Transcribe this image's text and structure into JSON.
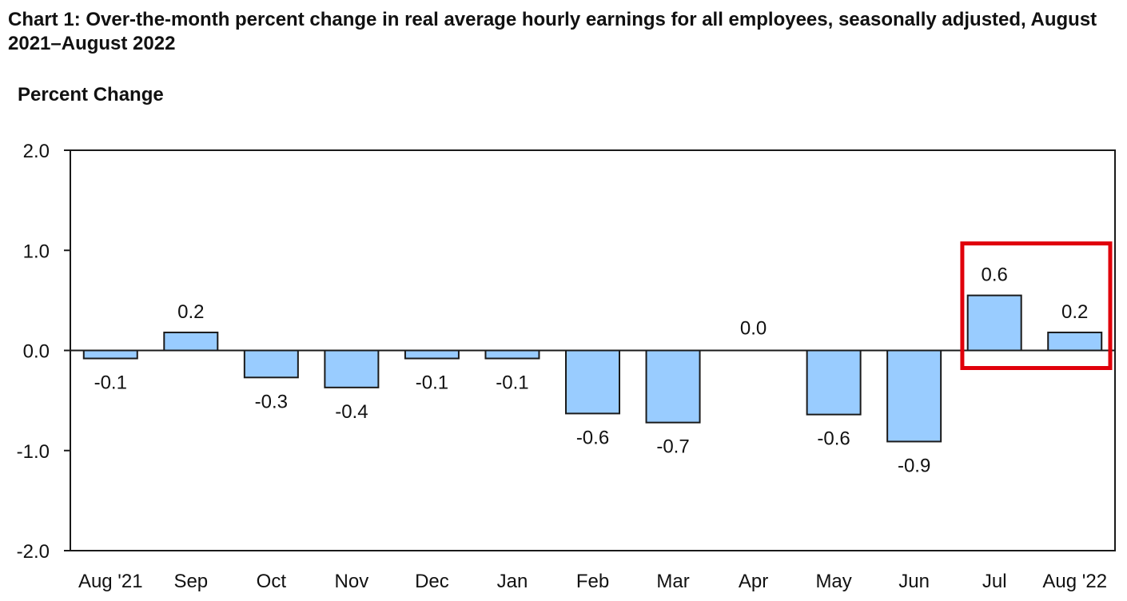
{
  "chart_data": {
    "type": "bar",
    "title": "Chart 1: Over-the-month percent change in real average hourly earnings for all employees, seasonally adjusted, August 2021–August 2022",
    "ylabel": "Percent Change",
    "xlabel": "",
    "categories": [
      "Aug '21",
      "Sep",
      "Oct",
      "Nov",
      "Dec",
      "Jan",
      "Feb",
      "Mar",
      "Apr",
      "May",
      "Jun",
      "Jul",
      "Aug '22"
    ],
    "values": [
      -0.08,
      0.18,
      -0.27,
      -0.37,
      -0.08,
      -0.08,
      -0.63,
      -0.72,
      0.0,
      -0.64,
      -0.91,
      0.55,
      0.18
    ],
    "data_labels": [
      "-0.1",
      "0.2",
      "-0.3",
      "-0.4",
      "-0.1",
      "-0.1",
      "-0.6",
      "-0.7",
      "0.0",
      "-0.6",
      "-0.9",
      "0.6",
      "0.2"
    ],
    "ylim": [
      -2.0,
      2.0
    ],
    "yticks": [
      2.0,
      1.0,
      0.0,
      -1.0,
      -2.0
    ],
    "ytick_labels": [
      "2.0",
      "1.0",
      "0.0",
      "-1.0",
      "-2.0"
    ],
    "grid": false,
    "legend": "none",
    "highlight": {
      "categories": [
        "Jul",
        "Aug '22"
      ],
      "color": "#e0000b"
    },
    "colors": {
      "bar_fill": "#99ccff",
      "bar_stroke": "#1a1a1a",
      "axis": "#1a1a1a"
    }
  }
}
